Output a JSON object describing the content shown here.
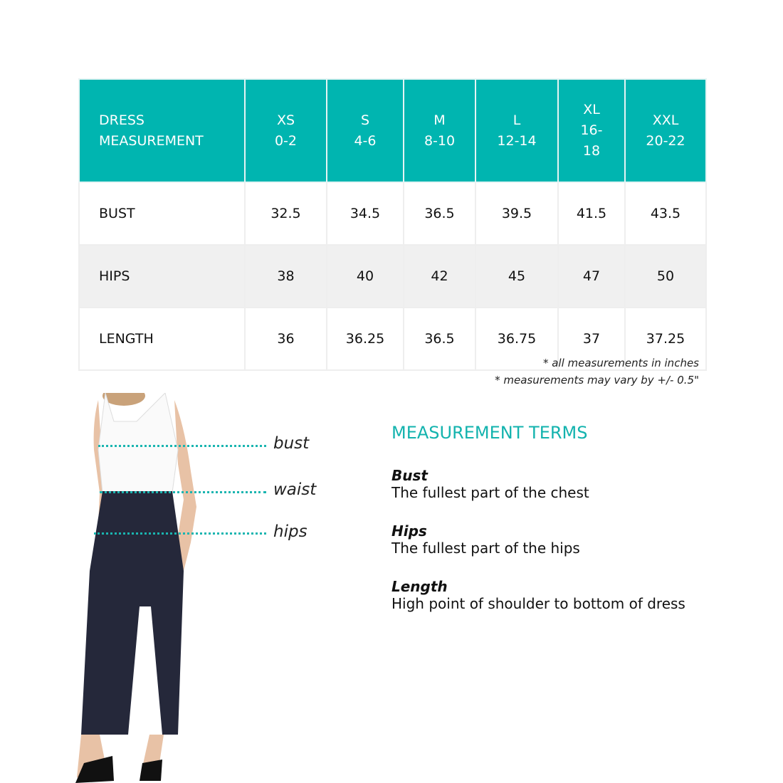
{
  "table": {
    "header_label": [
      "DRESS",
      "MEASUREMENT"
    ],
    "sizes": [
      {
        "size": "XS",
        "range": "0-2"
      },
      {
        "size": "S",
        "range": "4-6"
      },
      {
        "size": "M",
        "range": "8-10"
      },
      {
        "size": "L",
        "range": "12-14"
      },
      {
        "size": "XL",
        "range": "16-18"
      },
      {
        "size": "XXL",
        "range": "20-22"
      }
    ],
    "rows": [
      {
        "label": "BUST",
        "values": [
          "32.5",
          "34.5",
          "36.5",
          "39.5",
          "41.5",
          "43.5"
        ]
      },
      {
        "label": "HIPS",
        "values": [
          "38",
          "40",
          "42",
          "45",
          "47",
          "50"
        ]
      },
      {
        "label": "LENGTH",
        "values": [
          "36",
          "36.25",
          "36.5",
          "36.75",
          "37",
          "37.25"
        ]
      }
    ]
  },
  "notes": {
    "units": "* all measurements in inches",
    "variance": "* measurements may vary by +/- 0.5\""
  },
  "figure_labels": {
    "bust": "bust",
    "waist": "waist",
    "hips": "hips"
  },
  "terms": {
    "title": "MEASUREMENT TERMS",
    "items": [
      {
        "name": "Bust",
        "desc": "The fullest part of the chest"
      },
      {
        "name": "Hips",
        "desc": "The fullest part of the hips"
      },
      {
        "name": "Length",
        "desc": "High point of shoulder to bottom of dress"
      }
    ]
  },
  "colors": {
    "accent": "#00b5b0",
    "alt_row": "#f0f0f0"
  }
}
